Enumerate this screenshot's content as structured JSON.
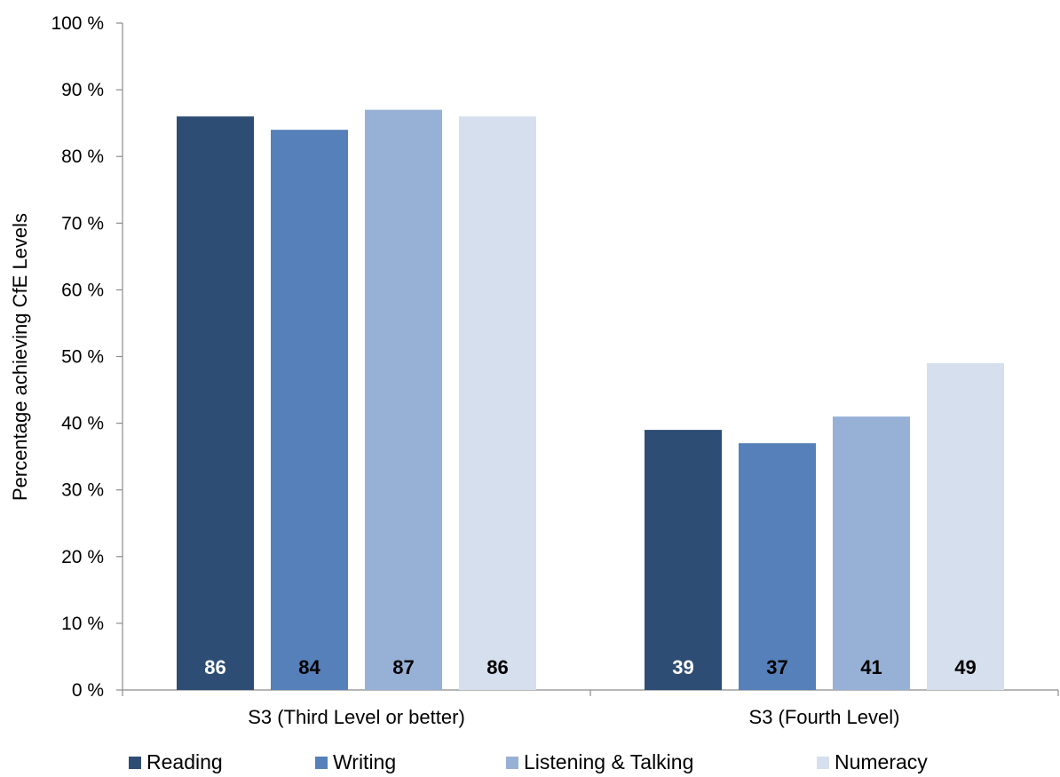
{
  "chart_data": {
    "type": "bar",
    "title": "",
    "xlabel": "",
    "ylabel": "Percentage achieving CfE Levels",
    "ylim": [
      0,
      100
    ],
    "y_tick_step": 10,
    "y_tick_suffix": " %",
    "grid": false,
    "legend_position": "bottom",
    "categories": [
      "S3 (Third Level or better)",
      "S3 (Fourth Level)"
    ],
    "series": [
      {
        "name": "Reading",
        "values": [
          86,
          39
        ],
        "color": "#2e4d74",
        "label_color": "#ffffff"
      },
      {
        "name": "Writing",
        "values": [
          84,
          37
        ],
        "color": "#5580b9",
        "label_color": "#000000"
      },
      {
        "name": "Listening & Talking",
        "values": [
          87,
          41
        ],
        "color": "#97b1d6",
        "label_color": "#000000"
      },
      {
        "name": "Numeracy",
        "values": [
          86,
          49
        ],
        "color": "#d6dfee",
        "label_color": "#000000"
      }
    ],
    "data_labels": [
      [
        "86",
        "84",
        "87",
        "86"
      ],
      [
        "39",
        "37",
        "41",
        "49"
      ]
    ]
  }
}
